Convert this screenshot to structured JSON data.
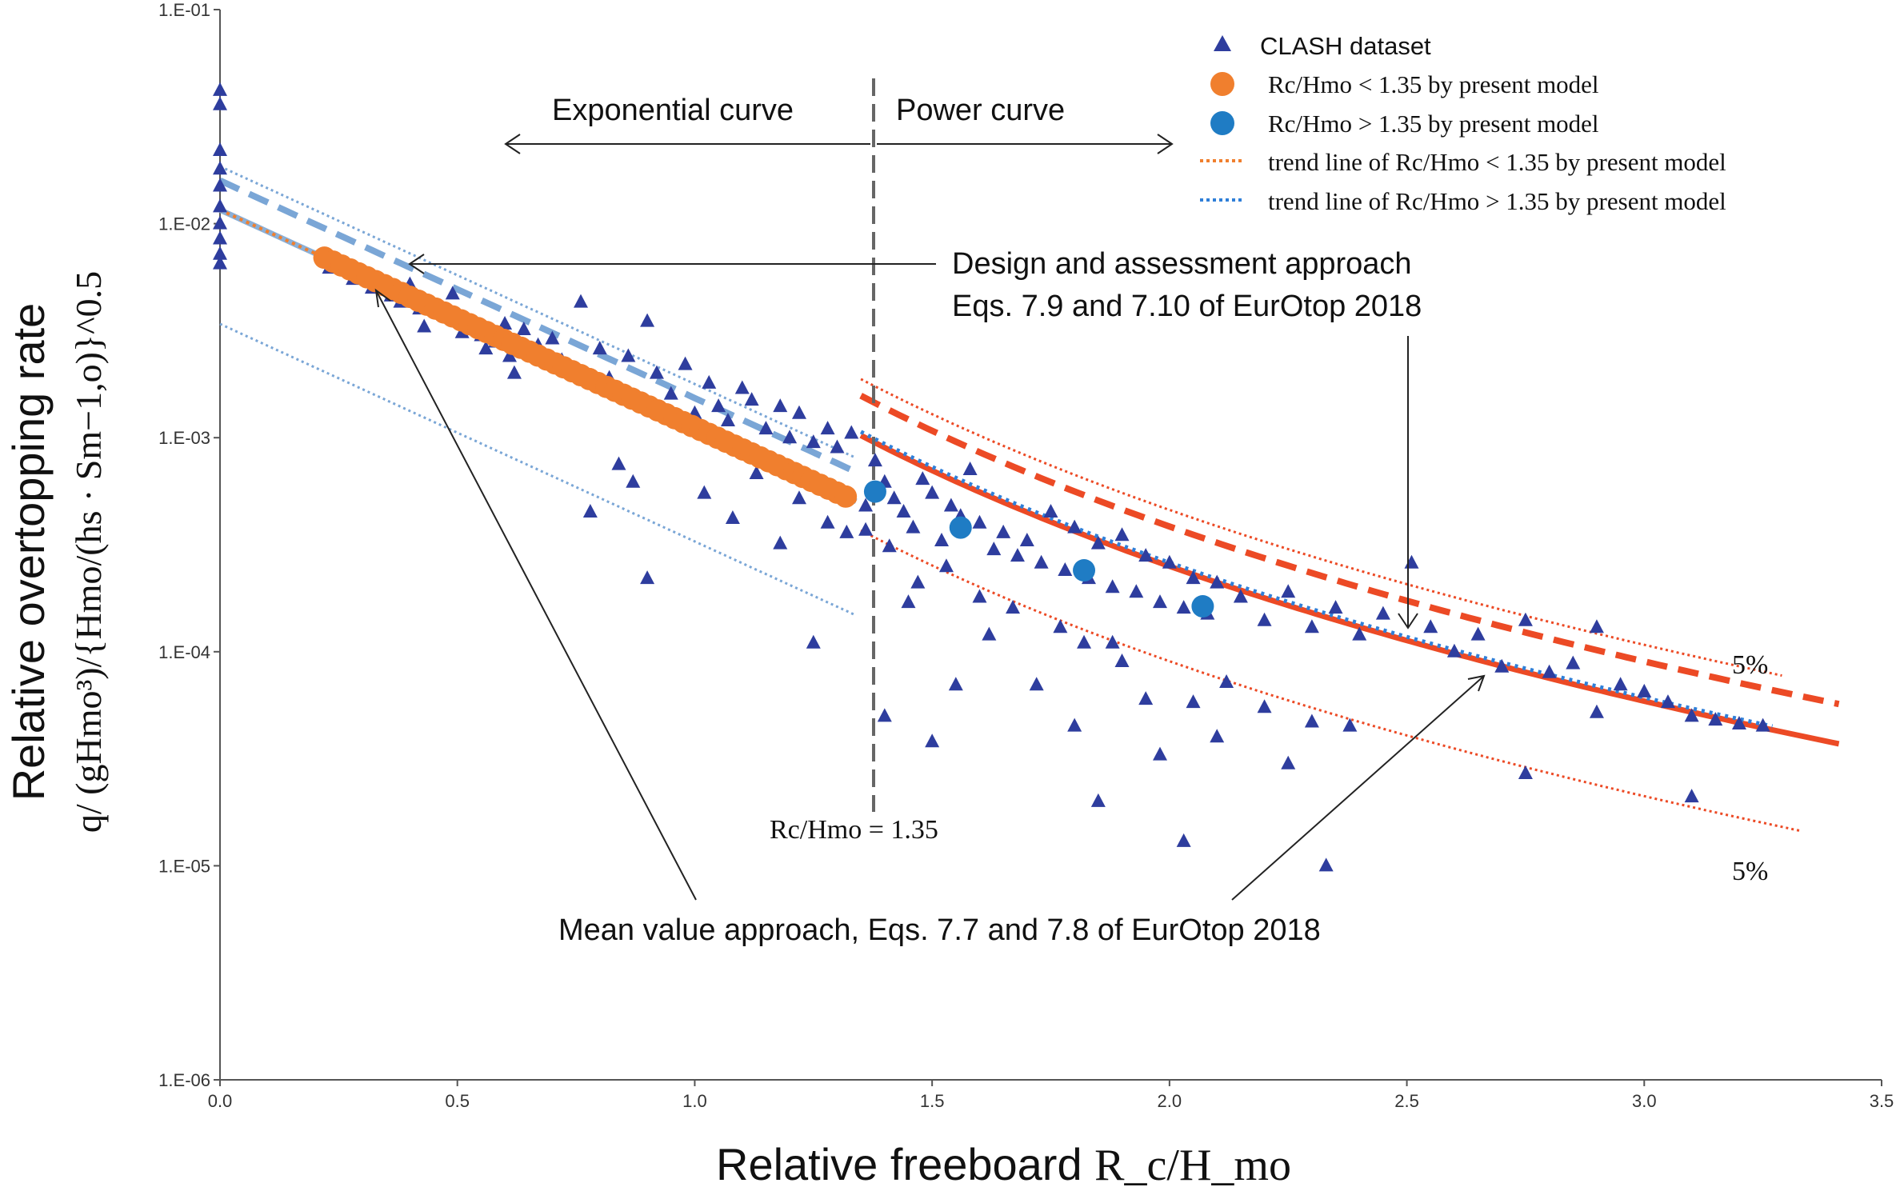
{
  "chart_data": {
    "type": "scatter",
    "title": "",
    "xlabel": "Relative freeboard",
    "xlabel_math": "R_c/H_mo",
    "ylabel_line1": "Relative overtopping rate",
    "ylabel_line2": "q/ (gHmo³)/{Hmo/(hs · Sm−1,o)}^0.5",
    "x_range": [
      0,
      3.5
    ],
    "y_range_log10": [
      -6,
      -1
    ],
    "x_ticks": [
      "0.0",
      "0.5",
      "1.0",
      "1.5",
      "2.0",
      "2.5",
      "3.0",
      "3.5"
    ],
    "y_ticks": [
      "1.E-06",
      "1.E-05",
      "1.E-04",
      "1.E-03",
      "1.E-02",
      "1.E-01"
    ],
    "grid": false,
    "legend_position": "top-right",
    "legend": [
      {
        "key": "clash",
        "label": "CLASH dataset",
        "marker": "triangle",
        "color": "#2e3d9e"
      },
      {
        "key": "orange_pts",
        "label_pre": "Rc/Hmo",
        "label_rel": "< 1.35 by present model",
        "marker": "circle",
        "color": "#f07f2e"
      },
      {
        "key": "blue_pts",
        "label_pre": "Rc/Hmo",
        "label_rel": "> 1.35 by present model",
        "marker": "circle",
        "color": "#1f7cc4"
      },
      {
        "key": "orange_trend",
        "label_pre": "trend line of Rc/Hmo",
        "label_rel": "< 1.35 by present model",
        "marker": "dotted-line",
        "color": "#f07f2e"
      },
      {
        "key": "blue_trend",
        "label_pre": "trend line of Rc/Hmo",
        "label_rel": "> 1.35 by present model",
        "marker": "dotted-line",
        "color": "#2f7fd8"
      }
    ],
    "divider": {
      "x": 1.35,
      "label": "Rc/Hmo = 1.35"
    },
    "annotations": {
      "exponential": "Exponential curve",
      "power": "Power curve",
      "design_line1": "Design and assessment approach",
      "design_line2": "Eqs. 7.9 and 7.10 of EurOtop 2018",
      "mean": "Mean value approach, Eqs. 7.7 and 7.8 of EurOtop 2018",
      "pct_upper": "5%",
      "pct_lower": "5%"
    },
    "series": [
      {
        "name": "CLASH dataset",
        "color": "#2e3d9e",
        "points": [
          [
            0.0,
            0.042
          ],
          [
            0.0,
            0.036
          ],
          [
            0.0,
            0.022
          ],
          [
            0.0,
            0.018
          ],
          [
            0.0,
            0.015
          ],
          [
            0.0,
            0.012
          ],
          [
            0.0,
            0.01
          ],
          [
            0.0,
            0.0085
          ],
          [
            0.0,
            0.0072
          ],
          [
            0.0,
            0.0065
          ],
          [
            0.23,
            0.0062
          ],
          [
            0.28,
            0.0055
          ],
          [
            0.32,
            0.005
          ],
          [
            0.36,
            0.0046
          ],
          [
            0.38,
            0.0043
          ],
          [
            0.4,
            0.0052
          ],
          [
            0.42,
            0.004
          ],
          [
            0.43,
            0.0033
          ],
          [
            0.47,
            0.0038
          ],
          [
            0.49,
            0.0047
          ],
          [
            0.51,
            0.0031
          ],
          [
            0.52,
            0.0035
          ],
          [
            0.55,
            0.003
          ],
          [
            0.56,
            0.0026
          ],
          [
            0.58,
            0.0028
          ],
          [
            0.6,
            0.0034
          ],
          [
            0.61,
            0.0024
          ],
          [
            0.62,
            0.002
          ],
          [
            0.64,
            0.0032
          ],
          [
            0.67,
            0.0027
          ],
          [
            0.7,
            0.0029
          ],
          [
            0.72,
            0.0023
          ],
          [
            0.75,
            0.0021
          ],
          [
            0.76,
            0.0043
          ],
          [
            0.8,
            0.0026
          ],
          [
            0.82,
            0.0019
          ],
          [
            0.84,
            0.0017
          ],
          [
            0.86,
            0.0024
          ],
          [
            0.88,
            0.0015
          ],
          [
            0.9,
            0.0035
          ],
          [
            0.92,
            0.002
          ],
          [
            0.95,
            0.0016
          ],
          [
            0.98,
            0.0022
          ],
          [
            1.0,
            0.0013
          ],
          [
            1.03,
            0.0018
          ],
          [
            1.05,
            0.0014
          ],
          [
            1.07,
            0.0012
          ],
          [
            1.1,
            0.0017
          ],
          [
            1.12,
            0.0015
          ],
          [
            1.15,
            0.0011
          ],
          [
            1.18,
            0.0014
          ],
          [
            1.2,
            0.001
          ],
          [
            1.22,
            0.0013
          ],
          [
            1.25,
            0.00095
          ],
          [
            1.28,
            0.0011
          ],
          [
            1.3,
            0.0009
          ],
          [
            1.33,
            0.00105
          ],
          [
            0.78,
            0.00045
          ],
          [
            0.84,
            0.00075
          ],
          [
            0.87,
            0.00062
          ],
          [
            0.9,
            0.00022
          ],
          [
            1.02,
            0.00055
          ],
          [
            1.08,
            0.00042
          ],
          [
            1.13,
            0.00068
          ],
          [
            1.18,
            0.00032
          ],
          [
            1.22,
            0.00052
          ],
          [
            1.25,
            0.00011
          ],
          [
            1.28,
            0.0004
          ],
          [
            1.32,
            0.00036
          ],
          [
            1.36,
            0.00048
          ],
          [
            1.38,
            0.00078
          ],
          [
            1.4,
            0.00062
          ],
          [
            1.42,
            0.00052
          ],
          [
            1.44,
            0.00045
          ],
          [
            1.46,
            0.00038
          ],
          [
            1.48,
            0.00064
          ],
          [
            1.5,
            0.00055
          ],
          [
            1.52,
            0.00033
          ],
          [
            1.54,
            0.00048
          ],
          [
            1.56,
            0.00043
          ],
          [
            1.58,
            0.00071
          ],
          [
            1.6,
            0.0004
          ],
          [
            1.63,
            0.0003
          ],
          [
            1.65,
            0.00036
          ],
          [
            1.68,
            0.00028
          ],
          [
            1.7,
            0.00033
          ],
          [
            1.73,
            0.00026
          ],
          [
            1.75,
            0.00045
          ],
          [
            1.78,
            0.00024
          ],
          [
            1.8,
            0.00038
          ],
          [
            1.83,
            0.00022
          ],
          [
            1.85,
            0.00032
          ],
          [
            1.88,
            0.0002
          ],
          [
            1.9,
            0.00035
          ],
          [
            1.93,
            0.00019
          ],
          [
            1.95,
            0.00028
          ],
          [
            1.98,
            0.00017
          ],
          [
            2.0,
            0.00026
          ],
          [
            2.03,
            0.00016
          ],
          [
            2.05,
            0.00022
          ],
          [
            2.08,
            0.00015
          ],
          [
            2.1,
            0.00021
          ],
          [
            2.15,
            0.00018
          ],
          [
            2.2,
            0.00014
          ],
          [
            2.25,
            0.00019
          ],
          [
            2.3,
            0.00013
          ],
          [
            2.35,
            0.00016
          ],
          [
            2.4,
            0.00012
          ],
          [
            2.45,
            0.00015
          ],
          [
            2.51,
            0.00026
          ],
          [
            2.55,
            0.00013
          ],
          [
            2.6,
            0.0001
          ],
          [
            2.65,
            0.00012
          ],
          [
            2.7,
            8.5e-05
          ],
          [
            2.75,
            0.00014
          ],
          [
            2.8,
            8e-05
          ],
          [
            2.85,
            8.8e-05
          ],
          [
            2.9,
            0.00013
          ],
          [
            2.95,
            7e-05
          ],
          [
            3.0,
            6.5e-05
          ],
          [
            3.05,
            5.8e-05
          ],
          [
            3.1,
            5e-05
          ],
          [
            3.15,
            4.8e-05
          ],
          [
            3.2,
            4.6e-05
          ],
          [
            3.25,
            4.5e-05
          ],
          [
            1.4,
            5e-05
          ],
          [
            1.45,
            0.00017
          ],
          [
            1.5,
            3.8e-05
          ],
          [
            1.55,
            7e-05
          ],
          [
            1.62,
            0.00012
          ],
          [
            1.72,
            7e-05
          ],
          [
            1.8,
            4.5e-05
          ],
          [
            1.85,
            2e-05
          ],
          [
            1.88,
            0.00011
          ],
          [
            1.95,
            6e-05
          ],
          [
            1.98,
            3.3e-05
          ],
          [
            2.03,
            1.3e-05
          ],
          [
            2.05,
            5.8e-05
          ],
          [
            2.1,
            4e-05
          ],
          [
            2.2,
            5.5e-05
          ],
          [
            2.25,
            3e-05
          ],
          [
            2.3,
            4.7e-05
          ],
          [
            2.33,
            1e-05
          ],
          [
            2.38,
            4.5e-05
          ],
          [
            2.75,
            2.7e-05
          ],
          [
            2.9,
            5.2e-05
          ],
          [
            3.1,
            2.1e-05
          ],
          [
            1.36,
            0.00037
          ],
          [
            1.41,
            0.00031
          ],
          [
            1.47,
            0.00021
          ],
          [
            1.53,
            0.00025
          ],
          [
            1.6,
            0.00018
          ],
          [
            1.67,
            0.00016
          ],
          [
            1.77,
            0.00013
          ],
          [
            1.82,
            0.00011
          ],
          [
            1.9,
            9e-05
          ],
          [
            2.12,
            7.2e-05
          ]
        ]
      },
      {
        "name": "Rc/Hmo < 1.35 by present model",
        "color": "#f07f2e",
        "x_start": 0.22,
        "x_end": 1.32,
        "a": 0.0116,
        "b": 2.34
      },
      {
        "name": "Rc/Hmo > 1.35 by present model",
        "color": "#1f7cc4",
        "points": [
          [
            1.38,
            0.00056
          ],
          [
            1.56,
            0.00038
          ],
          [
            1.82,
            0.00024
          ],
          [
            2.07,
            0.000163
          ]
        ]
      },
      {
        "name": "trend line of Rc/Hmo < 1.35 by present model",
        "color": "#f07f2e",
        "x_range": [
          0.0,
          1.35
        ]
      },
      {
        "name": "trend line of Rc/Hmo > 1.35 by present model",
        "color": "#2f7fd8",
        "x_range": [
          1.35,
          3.27
        ]
      }
    ],
    "curves": {
      "exp_mean": {
        "a": 0.0116,
        "b": 2.34,
        "x_range": [
          0.0,
          1.35
        ],
        "color": "#8ab0d8"
      },
      "exp_design": {
        "a": 0.0159,
        "b": 2.34,
        "x_range": [
          0.0,
          1.35
        ],
        "color": "#7aa6d6"
      },
      "exp_upper5": {
        "a": 0.0185,
        "b": 2.34,
        "x_range": [
          0.0,
          1.35
        ],
        "color": "#7aa6d6"
      },
      "exp_lower5": {
        "a": 0.0034,
        "b": 2.34,
        "x_range": [
          0.0,
          1.35
        ],
        "color": "#7aa6d6"
      },
      "pow_mean": {
        "a": 0.003,
        "b": 3.58,
        "x_range": [
          1.35,
          3.42
        ],
        "color": "#ec4a25"
      },
      "pow_design": {
        "a": 0.0046,
        "b": 3.58,
        "x_range": [
          1.35,
          3.42
        ],
        "color": "#ec4a25"
      },
      "pow_upper5": {
        "a": 0.0055,
        "b": 3.58,
        "x_range": [
          1.35,
          3.3
        ],
        "color": "#ec4a25"
      },
      "pow_lower5": {
        "a": 0.00108,
        "b": 3.58,
        "x_range": [
          1.35,
          3.33
        ],
        "color": "#ec4a25"
      }
    }
  }
}
